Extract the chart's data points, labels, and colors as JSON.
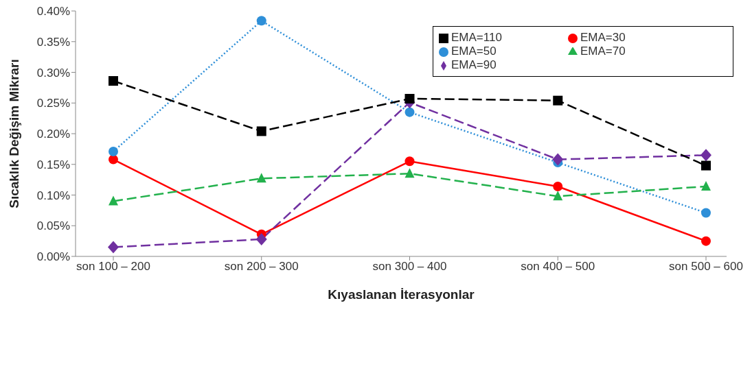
{
  "chart_data": {
    "type": "line",
    "xlabel": "Kıyaslanan İterasyonlar",
    "ylabel": "Sıcaklık Değişim Mikrarı",
    "categories": [
      "son 100 – 200",
      "son 200 – 300",
      "son 300 – 400",
      "son 400 – 500",
      "son 500 – 600"
    ],
    "series": [
      {
        "name": "EMA=30",
        "color": "#ff0000",
        "marker": "circle",
        "line_style": "solid",
        "values": [
          0.158,
          0.036,
          0.155,
          0.114,
          0.025
        ]
      },
      {
        "name": "EMA=50",
        "color": "#2e8fd8",
        "marker": "circle",
        "line_style": "dotted",
        "values": [
          0.171,
          0.384,
          0.235,
          0.153,
          0.071
        ]
      },
      {
        "name": "EMA=70",
        "color": "#22b14c",
        "marker": "triangle",
        "line_style": "dashed",
        "values": [
          0.09,
          0.127,
          0.135,
          0.098,
          0.114
        ]
      },
      {
        "name": "EMA=90",
        "color": "#7030a0",
        "marker": "diamond",
        "line_style": "dashed",
        "values": [
          0.015,
          0.028,
          0.251,
          0.158,
          0.165
        ]
      },
      {
        "name": "EMA=110",
        "color": "#000000",
        "marker": "square",
        "line_style": "dashed",
        "values": [
          0.286,
          0.204,
          0.257,
          0.254,
          0.148
        ]
      }
    ],
    "ylim": [
      0,
      0.4
    ],
    "yticks": [
      {
        "value": 0,
        "label": "0.00%"
      },
      {
        "value": 0.05,
        "label": "0.05%"
      },
      {
        "value": 0.1,
        "label": "0.10%"
      },
      {
        "value": 0.15,
        "label": "0.15%"
      },
      {
        "value": 0.2,
        "label": "0.20%"
      },
      {
        "value": 0.25,
        "label": "0.25%"
      },
      {
        "value": 0.3,
        "label": "0.30%"
      },
      {
        "value": 0.35,
        "label": "0.35%"
      },
      {
        "value": 0.4,
        "label": "0.40%"
      }
    ],
    "grid": false,
    "legend": "top right"
  }
}
